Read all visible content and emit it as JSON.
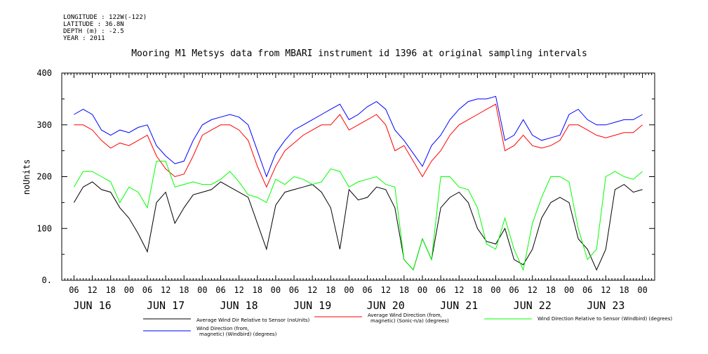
{
  "meta": {
    "longitude": "LONGITUDE : 122W(-122)",
    "latitude": "LATITUDE : 36.8N",
    "depth": "DEPTH (m) : -2.5",
    "year": "YEAR : 2011"
  },
  "chart_data": {
    "type": "line",
    "title": "Mooring M1 Metsys data from MBARI instrument id 1396 at original sampling intervals",
    "ylabel": "noUnits",
    "xlabel": "",
    "ylim": [
      0,
      400
    ],
    "yticks": [
      0,
      100,
      200,
      300,
      400
    ],
    "xlim_hours": [
      0,
      186
    ],
    "hour_ticks": [
      {
        "h": 0,
        "label": "06"
      },
      {
        "h": 6,
        "label": "12"
      },
      {
        "h": 12,
        "label": "18"
      },
      {
        "h": 18,
        "label": "00"
      },
      {
        "h": 24,
        "label": "06"
      },
      {
        "h": 30,
        "label": "12"
      },
      {
        "h": 36,
        "label": "18"
      },
      {
        "h": 42,
        "label": "00"
      },
      {
        "h": 48,
        "label": "06"
      },
      {
        "h": 54,
        "label": "12"
      },
      {
        "h": 60,
        "label": "18"
      },
      {
        "h": 66,
        "label": "00"
      },
      {
        "h": 72,
        "label": "06"
      },
      {
        "h": 78,
        "label": "12"
      },
      {
        "h": 84,
        "label": "18"
      },
      {
        "h": 90,
        "label": "00"
      },
      {
        "h": 96,
        "label": "06"
      },
      {
        "h": 102,
        "label": "12"
      },
      {
        "h": 108,
        "label": "18"
      },
      {
        "h": 114,
        "label": "00"
      },
      {
        "h": 120,
        "label": "06"
      },
      {
        "h": 126,
        "label": "12"
      },
      {
        "h": 132,
        "label": "18"
      },
      {
        "h": 138,
        "label": "00"
      },
      {
        "h": 144,
        "label": "06"
      },
      {
        "h": 150,
        "label": "12"
      },
      {
        "h": 156,
        "label": "18"
      },
      {
        "h": 162,
        "label": "00"
      },
      {
        "h": 168,
        "label": "06"
      },
      {
        "h": 174,
        "label": "12"
      },
      {
        "h": 180,
        "label": "18"
      },
      {
        "h": 186,
        "label": "00"
      }
    ],
    "day_labels": [
      {
        "h": 6,
        "label": "JUN 16"
      },
      {
        "h": 30,
        "label": "JUN 17"
      },
      {
        "h": 54,
        "label": "JUN 18"
      },
      {
        "h": 78,
        "label": "JUN 19"
      },
      {
        "h": 102,
        "label": "JUN 20"
      },
      {
        "h": 126,
        "label": "JUN 21"
      },
      {
        "h": 150,
        "label": "JUN 22"
      },
      {
        "h": 174,
        "label": "JUN 23"
      }
    ],
    "x_hours": [
      0,
      3,
      6,
      9,
      12,
      15,
      18,
      21,
      24,
      27,
      30,
      33,
      36,
      39,
      42,
      45,
      48,
      51,
      54,
      57,
      60,
      63,
      66,
      69,
      72,
      75,
      78,
      81,
      84,
      87,
      90,
      93,
      96,
      99,
      102,
      105,
      108,
      111,
      114,
      117,
      120,
      123,
      126,
      129,
      132,
      135,
      138,
      141,
      144,
      147,
      150,
      153,
      156,
      159,
      162,
      165,
      168,
      171,
      174,
      177,
      180,
      183,
      186
    ],
    "series": [
      {
        "name": "Average Wind Dir Relative to Sensor (noUnits)",
        "color": "#000000",
        "values": [
          150,
          180,
          190,
          175,
          170,
          140,
          120,
          90,
          55,
          150,
          170,
          110,
          140,
          165,
          170,
          175,
          190,
          180,
          170,
          160,
          110,
          60,
          145,
          170,
          175,
          180,
          185,
          170,
          140,
          60,
          175,
          155,
          160,
          180,
          175,
          140,
          40,
          20,
          80,
          40,
          140,
          160,
          170,
          150,
          100,
          75,
          70,
          100,
          40,
          30,
          60,
          120,
          150,
          160,
          150,
          80,
          60,
          20,
          60,
          175,
          185,
          170,
          175
        ]
      },
      {
        "name": "Average Wind Direction (from, magnetic) (Sonic-n/a) (degrees)",
        "color": "#ff0000",
        "values": [
          300,
          300,
          290,
          270,
          255,
          265,
          260,
          270,
          280,
          240,
          215,
          200,
          205,
          240,
          280,
          290,
          300,
          300,
          290,
          270,
          220,
          180,
          220,
          250,
          265,
          280,
          290,
          300,
          300,
          320,
          290,
          300,
          310,
          320,
          300,
          250,
          260,
          230,
          200,
          230,
          250,
          280,
          300,
          310,
          320,
          330,
          340,
          250,
          260,
          280,
          260,
          255,
          260,
          270,
          300,
          300,
          290,
          280,
          275,
          280,
          285,
          285,
          300
        ]
      },
      {
        "name": "Wind Direction Relative to Sensor (Windbird) (degrees)",
        "color": "#00ff00",
        "values": [
          180,
          210,
          210,
          200,
          190,
          150,
          180,
          170,
          140,
          230,
          230,
          180,
          185,
          190,
          185,
          185,
          195,
          210,
          190,
          165,
          160,
          150,
          195,
          185,
          200,
          195,
          185,
          190,
          215,
          210,
          180,
          190,
          195,
          200,
          185,
          180,
          40,
          20,
          80,
          40,
          200,
          200,
          180,
          175,
          140,
          70,
          60,
          120,
          60,
          20,
          110,
          160,
          200,
          200,
          190,
          100,
          40,
          60,
          200,
          210,
          200,
          195,
          210
        ]
      },
      {
        "name": "Wind Direction (from, magnetic) (Windbird) (degrees)",
        "color": "#0000ff",
        "values": [
          320,
          330,
          320,
          290,
          280,
          290,
          285,
          295,
          300,
          260,
          240,
          225,
          230,
          270,
          300,
          310,
          315,
          320,
          315,
          300,
          250,
          200,
          245,
          270,
          290,
          300,
          310,
          320,
          330,
          340,
          310,
          320,
          335,
          345,
          330,
          290,
          270,
          245,
          220,
          260,
          280,
          310,
          330,
          345,
          350,
          350,
          355,
          270,
          280,
          310,
          280,
          270,
          275,
          280,
          320,
          330,
          310,
          300,
          300,
          305,
          310,
          310,
          320
        ]
      }
    ],
    "legend": "bottom"
  },
  "legend": [
    {
      "line1": "Average Wind Dir Relative to Sensor (noUnits)",
      "line2": "",
      "color": "#000000"
    },
    {
      "line1": "Average Wind Direction (from,",
      "line2": "magnetic) (Sonic-n/a) (degrees)",
      "color": "#ff0000"
    },
    {
      "line1": "Wind Direction Relative to Sensor (Windbird) (degrees)",
      "line2": "",
      "color": "#00ff00"
    },
    {
      "line1": "Wind Direction (from,",
      "line2": "magnetic) (Windbird) (degrees)",
      "color": "#0000ff"
    }
  ]
}
